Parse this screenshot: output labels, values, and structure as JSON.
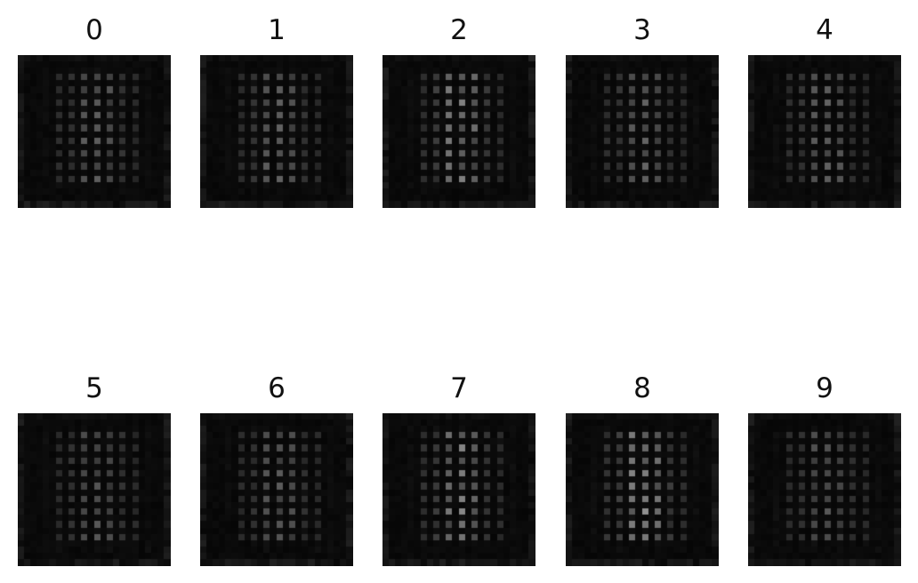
{
  "figure": {
    "panels": [
      {
        "title": "0",
        "brightness": 0.55
      },
      {
        "title": "1",
        "brightness": 0.6
      },
      {
        "title": "2",
        "brightness": 0.85
      },
      {
        "title": "3",
        "brightness": 0.55
      },
      {
        "title": "4",
        "brightness": 0.55
      },
      {
        "title": "5",
        "brightness": 0.5
      },
      {
        "title": "6",
        "brightness": 0.5
      },
      {
        "title": "7",
        "brightness": 0.85
      },
      {
        "title": "8",
        "brightness": 0.95
      },
      {
        "title": "9",
        "brightness": 0.45
      }
    ],
    "colors": {
      "background": "#ffffff",
      "image_base": "#050505",
      "title_text": "#111111"
    }
  }
}
